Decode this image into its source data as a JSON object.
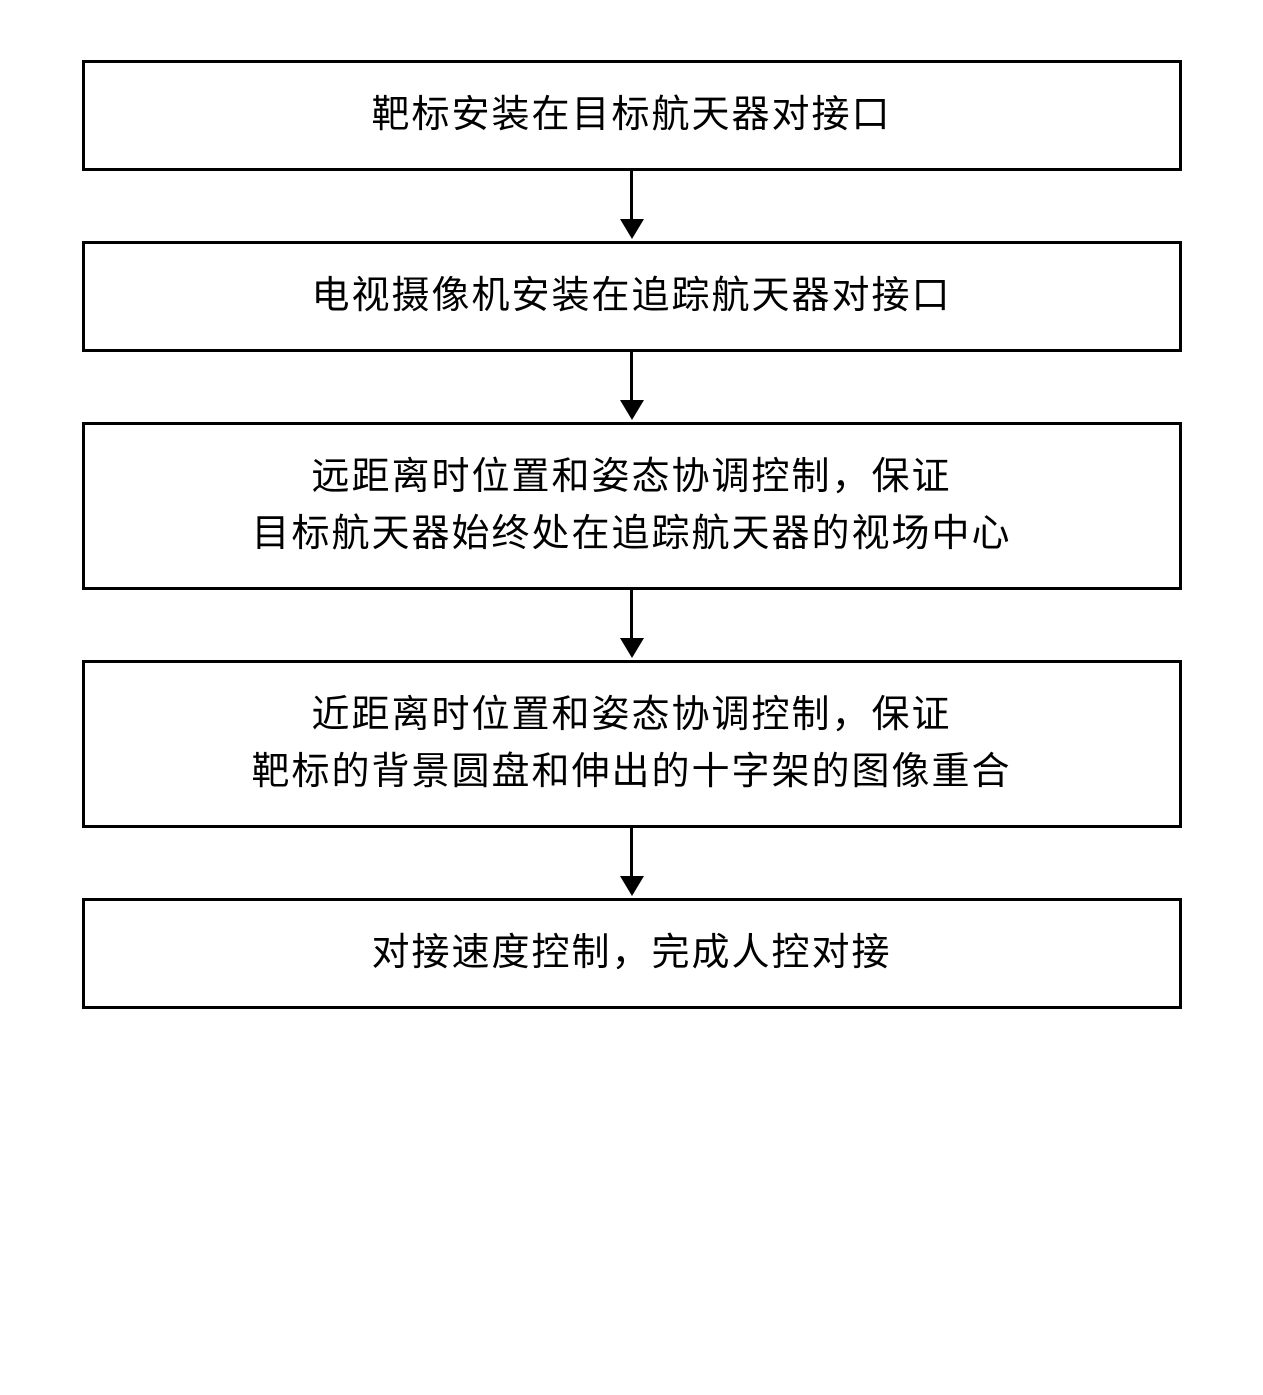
{
  "flowchart": {
    "type": "flowchart",
    "direction": "vertical",
    "background_color": "#ffffff",
    "box_border_color": "#000000",
    "box_border_width": 3,
    "arrow_color": "#000000",
    "arrow_width": 3,
    "text_color": "#000000",
    "font_size": 38,
    "font_family": "SimSun",
    "steps": [
      {
        "id": "step1",
        "lines": [
          "靶标安装在目标航天器对接口"
        ]
      },
      {
        "id": "step2",
        "lines": [
          "电视摄像机安装在追踪航天器对接口"
        ]
      },
      {
        "id": "step3",
        "lines": [
          "远距离时位置和姿态协调控制，保证",
          "目标航天器始终处在追踪航天器的视场中心"
        ]
      },
      {
        "id": "step4",
        "lines": [
          "近距离时位置和姿态协调控制，保证",
          "靶标的背景圆盘和伸出的十字架的图像重合"
        ]
      },
      {
        "id": "step5",
        "lines": [
          "对接速度控制，完成人控对接"
        ]
      }
    ]
  }
}
